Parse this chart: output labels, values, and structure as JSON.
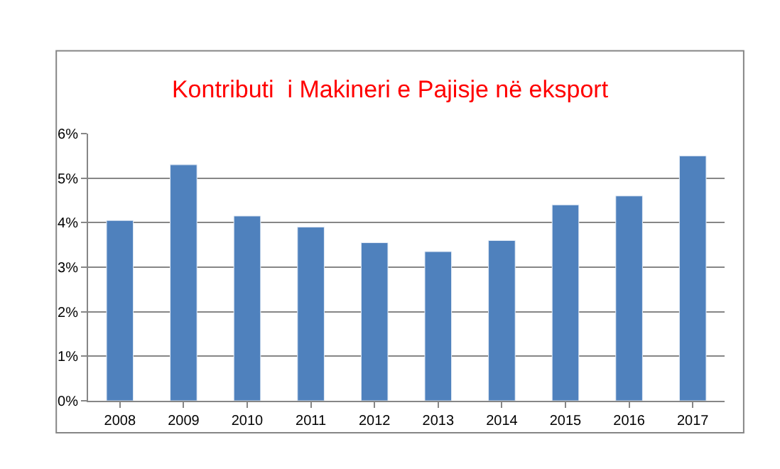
{
  "chart_data": {
    "type": "bar",
    "title": "Kontributi  i Makineri e Pajisje në eksport",
    "categories": [
      "2008",
      "2009",
      "2010",
      "2011",
      "2012",
      "2013",
      "2014",
      "2015",
      "2016",
      "2017"
    ],
    "values": [
      4.05,
      5.3,
      4.15,
      3.9,
      3.55,
      3.35,
      3.6,
      4.4,
      4.6,
      5.5
    ],
    "color": "#4f81bd",
    "ylim": [
      0,
      6
    ],
    "yticks": [
      {
        "value": 0,
        "label": "0%"
      },
      {
        "value": 1,
        "label": "1%"
      },
      {
        "value": 2,
        "label": "2%"
      },
      {
        "value": 3,
        "label": "3%"
      },
      {
        "value": 4,
        "label": "4%"
      },
      {
        "value": 5,
        "label": "5%"
      },
      {
        "value": 6,
        "label": "6%"
      }
    ],
    "grid": "y"
  }
}
